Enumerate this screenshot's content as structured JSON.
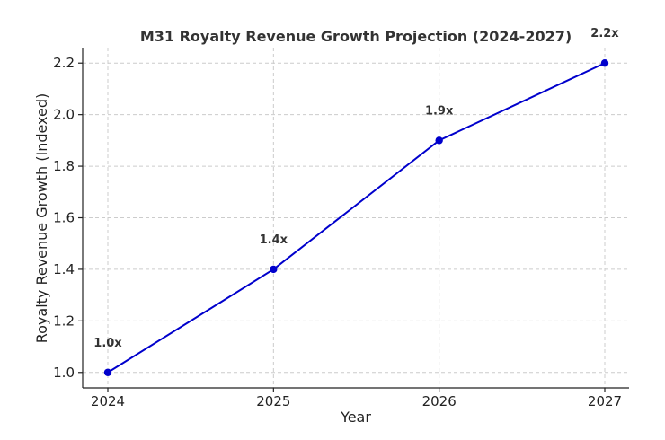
{
  "chart_data": {
    "type": "line",
    "title": "M31 Royalty Revenue Growth Projection (2024-2027)",
    "xlabel": "Year",
    "ylabel": "Royalty Revenue Growth (Indexed)",
    "x": [
      "2024",
      "2025",
      "2026",
      "2027"
    ],
    "series": [
      {
        "name": "Royalty Revenue Growth",
        "values": [
          1.0,
          1.4,
          1.9,
          2.2
        ],
        "labels": [
          "1.0x",
          "1.4x",
          "1.9x",
          "2.2x"
        ],
        "color": "#0000cc"
      }
    ],
    "yticks": [
      "1.0",
      "1.2",
      "1.4",
      "1.6",
      "1.8",
      "2.0",
      "2.2"
    ],
    "ylim": [
      0.94,
      2.26
    ],
    "grid": true
  }
}
